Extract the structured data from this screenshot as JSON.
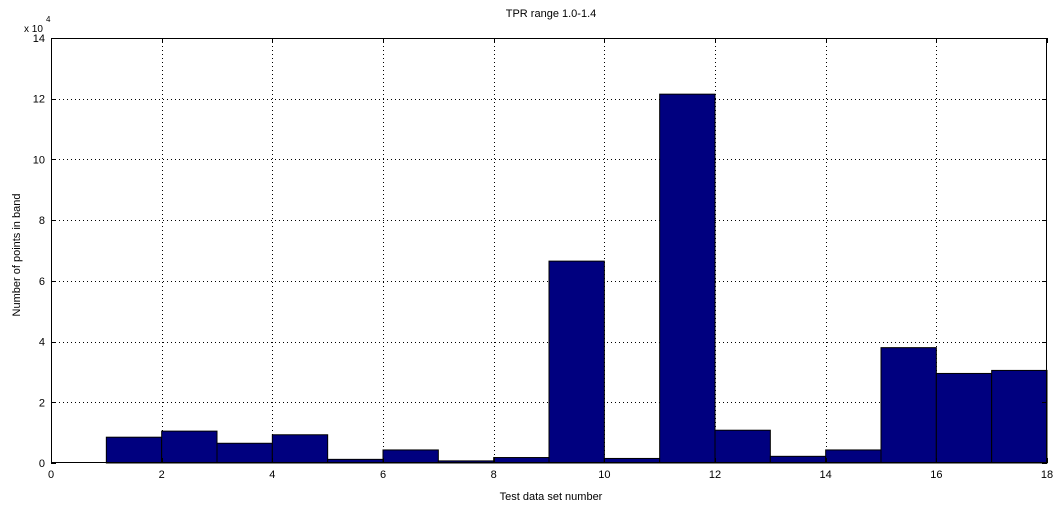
{
  "chart_data": {
    "type": "bar",
    "title": "TPR range 1.0-1.4",
    "xlabel": "Test data set number",
    "ylabel": "Number of points in band",
    "y_exponent_base": "x 10",
    "y_exponent_power": "4",
    "xlim": [
      0,
      18
    ],
    "ylim": [
      0,
      14
    ],
    "xticks": [
      "0",
      "2",
      "4",
      "6",
      "8",
      "10",
      "12",
      "14",
      "16",
      "18"
    ],
    "yticks": [
      "0",
      "2",
      "4",
      "6",
      "8",
      "10",
      "12",
      "14"
    ],
    "grid": true,
    "bar_color": "#00007f",
    "categories": [
      1,
      2,
      3,
      4,
      5,
      6,
      7,
      8,
      9,
      10,
      11,
      12,
      13,
      14,
      15,
      16,
      17
    ],
    "bar_edges": [
      [
        1,
        2
      ],
      [
        2,
        3
      ],
      [
        3,
        4
      ],
      [
        4,
        5
      ],
      [
        5,
        6
      ],
      [
        6,
        7
      ],
      [
        7,
        8
      ],
      [
        8,
        9
      ],
      [
        9,
        10
      ],
      [
        10,
        11
      ],
      [
        11,
        12
      ],
      [
        12,
        13
      ],
      [
        13,
        14
      ],
      [
        14,
        15
      ],
      [
        15,
        16
      ],
      [
        16,
        17
      ],
      [
        17,
        18
      ]
    ],
    "values": [
      0.85,
      1.05,
      0.65,
      0.93,
      0.12,
      0.43,
      0.07,
      0.18,
      6.65,
      0.15,
      12.15,
      1.08,
      0.22,
      0.43,
      3.8,
      2.95,
      3.05
    ],
    "value_scale": 10000
  }
}
